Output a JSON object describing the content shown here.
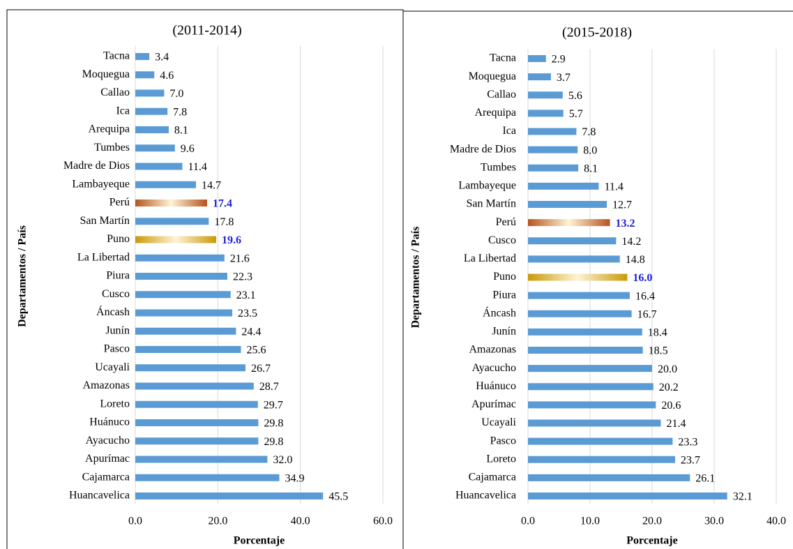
{
  "chart_data": [
    {
      "type": "bar",
      "orientation": "horizontal",
      "title": "(2011-2014)",
      "x_label": "Porcentaje",
      "y_label": "Departamentos / País",
      "categories": [
        "Tacna",
        "Moquegua",
        "Callao",
        "Ica",
        "Arequipa",
        "Tumbes",
        "Madre de Dios",
        "Lambayeque",
        "Perú",
        "San Martín",
        "Puno",
        "La Libertad",
        "Piura",
        "Cusco",
        "Áncash",
        "Junín",
        "Pasco",
        "Ucayali",
        "Amazonas",
        "Loreto",
        "Huánuco",
        "Ayacucho",
        "Apurímac",
        "Cajamarca",
        "Huancavelica"
      ],
      "values": [
        3.4,
        4.6,
        7.0,
        7.8,
        8.1,
        9.6,
        11.4,
        14.7,
        17.4,
        17.8,
        19.6,
        21.6,
        22.3,
        23.1,
        23.5,
        24.4,
        25.6,
        26.7,
        28.7,
        29.7,
        29.8,
        29.8,
        32.0,
        34.9,
        45.5
      ],
      "value_labels": [
        "3.4",
        "4.6",
        "7.0",
        "7.8",
        "8.1",
        "9.6",
        "11.4",
        "14.7",
        "17.4",
        "17.8",
        "19.6",
        "21.6",
        "22.3",
        "23.1",
        "23.5",
        "24.4",
        "25.6",
        "26.7",
        "28.7",
        "29.7",
        "29.8",
        "29.8",
        "32.0",
        "34.9",
        "45.5"
      ],
      "color": "#5b9bd5",
      "highlight_colors": [
        null,
        null,
        null,
        null,
        null,
        null,
        null,
        null,
        "#b5541c",
        null,
        "#c99a06",
        null,
        null,
        null,
        null,
        null,
        null,
        null,
        null,
        null,
        null,
        null,
        null,
        null,
        null
      ],
      "highlight_label_color": "#1f1fd6",
      "xlim": [
        0,
        60
      ],
      "xticks": [
        {
          "value": 0,
          "label": "0.0"
        },
        {
          "value": 20,
          "label": "20.0"
        },
        {
          "value": 40,
          "label": "40.0"
        },
        {
          "value": 60,
          "label": "60.0"
        }
      ],
      "grid": true
    },
    {
      "type": "bar",
      "orientation": "horizontal",
      "title": "(2015-2018)",
      "x_label": "Porcentaje",
      "y_label": "Departamentos / País",
      "categories": [
        "Tacna",
        "Moquegua",
        "Callao",
        "Arequipa",
        "Ica",
        "Madre de Dios",
        "Tumbes",
        "Lambayeque",
        "San Martín",
        "Perú",
        "Cusco",
        "La Libertad",
        "Puno",
        "Piura",
        "Áncash",
        "Junín",
        "Amazonas",
        "Ayacucho",
        "Huánuco",
        "Apurímac",
        "Ucayali",
        "Pasco",
        "Loreto",
        "Cajamarca",
        "Huancavelica"
      ],
      "values": [
        2.9,
        3.7,
        5.6,
        5.7,
        7.8,
        8.0,
        8.1,
        11.4,
        12.7,
        13.2,
        14.2,
        14.8,
        16.0,
        16.4,
        16.7,
        18.4,
        18.5,
        20.0,
        20.2,
        20.6,
        21.4,
        23.3,
        23.7,
        26.1,
        32.1
      ],
      "value_labels": [
        "2.9",
        "3.7",
        "5.6",
        "5.7",
        "7.8",
        "8.0",
        "8.1",
        "11.4",
        "12.7",
        "13.2",
        "14.2",
        "14.8",
        "16.0",
        "16.4",
        "16.7",
        "18.4",
        "18.5",
        "20.0",
        "20.2",
        "20.6",
        "21.4",
        "23.3",
        "23.7",
        "26.1",
        "32.1"
      ],
      "color": "#5b9bd5",
      "highlight_colors": [
        null,
        null,
        null,
        null,
        null,
        null,
        null,
        null,
        null,
        "#b5541c",
        null,
        null,
        "#c99a06",
        null,
        null,
        null,
        null,
        null,
        null,
        null,
        null,
        null,
        null,
        null,
        null
      ],
      "highlight_label_color": "#1f1fd6",
      "xlim": [
        0,
        40
      ],
      "xticks": [
        {
          "value": 0,
          "label": "0.0"
        },
        {
          "value": 10,
          "label": "10.0"
        },
        {
          "value": 20,
          "label": "20.0"
        },
        {
          "value": 30,
          "label": "30.0"
        },
        {
          "value": 40,
          "label": "40.0"
        }
      ],
      "grid": true
    }
  ]
}
